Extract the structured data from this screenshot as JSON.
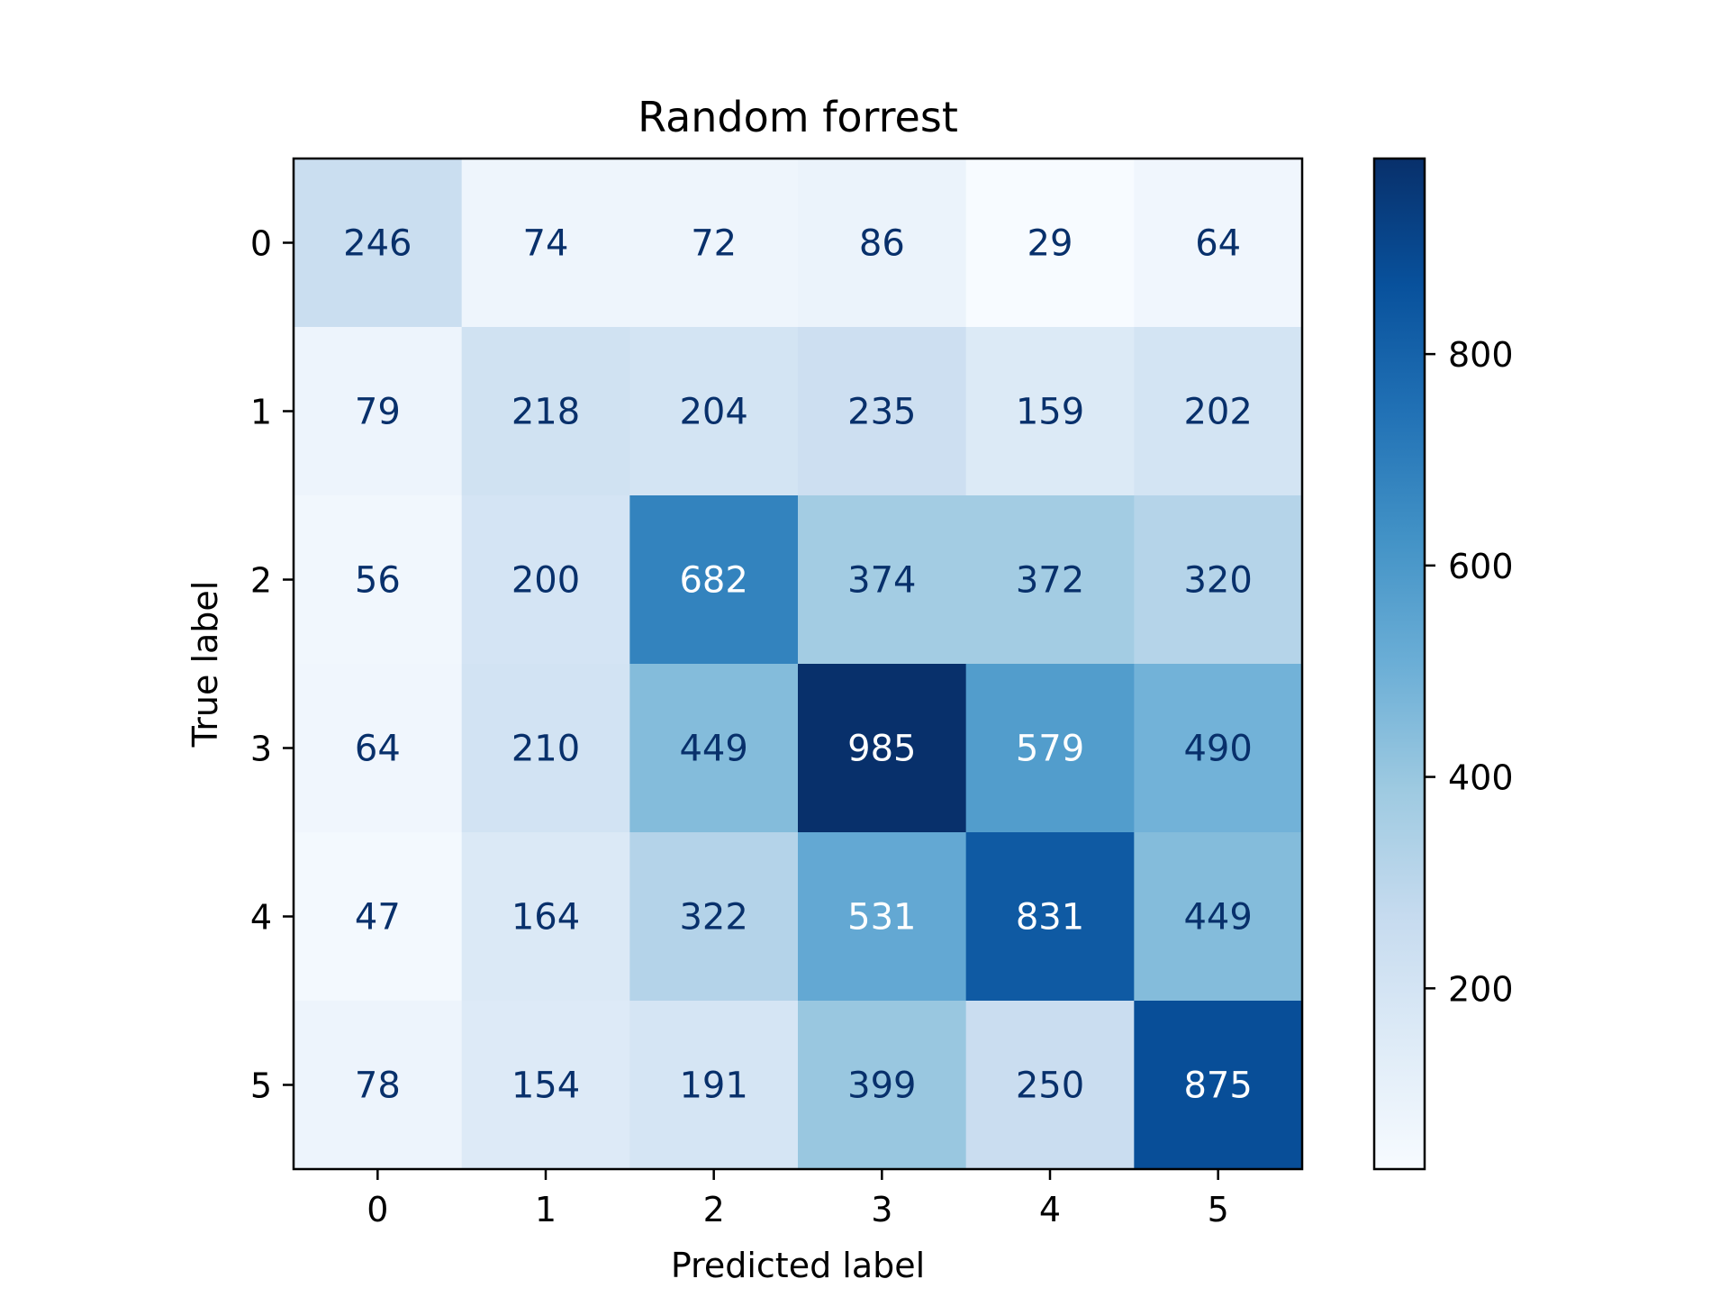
{
  "chart_data": {
    "type": "heatmap",
    "title": "Random forrest",
    "xlabel": "Predicted label",
    "ylabel": "True label",
    "x_categories": [
      "0",
      "1",
      "2",
      "3",
      "4",
      "5"
    ],
    "y_categories": [
      "0",
      "1",
      "2",
      "3",
      "4",
      "5"
    ],
    "values": [
      [
        246,
        74,
        72,
        86,
        29,
        64
      ],
      [
        79,
        218,
        204,
        235,
        159,
        202
      ],
      [
        56,
        200,
        682,
        374,
        372,
        320
      ],
      [
        64,
        210,
        449,
        985,
        579,
        490
      ],
      [
        47,
        164,
        322,
        531,
        831,
        449
      ],
      [
        78,
        154,
        191,
        399,
        250,
        875
      ]
    ],
    "colormap": "Blues",
    "color_range": [
      29,
      985
    ],
    "colorbar_ticks": [
      "200",
      "400",
      "600",
      "800"
    ],
    "colorbar_tick_values": [
      200,
      400,
      600,
      800
    ],
    "text_color_dark": "#08306b",
    "text_color_light": "#ffffff",
    "grid": false
  }
}
